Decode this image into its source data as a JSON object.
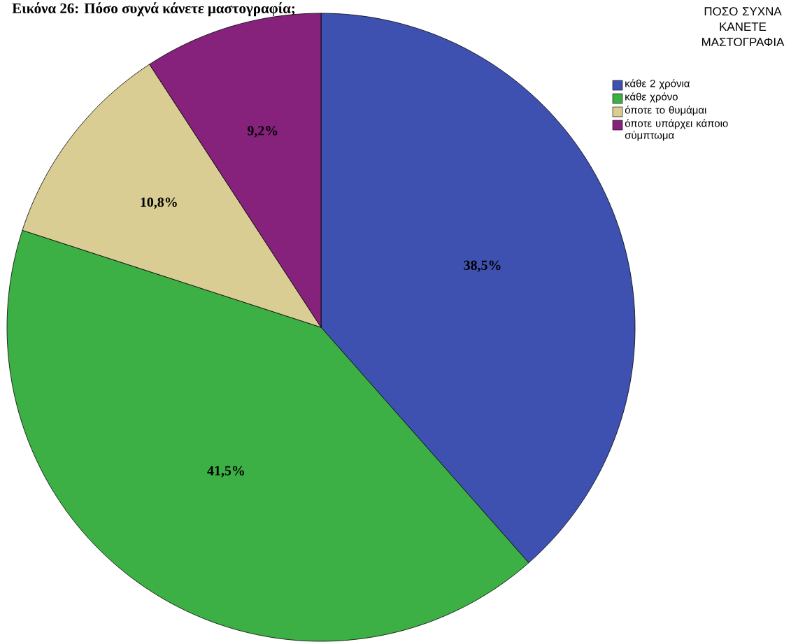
{
  "chart_data": {
    "type": "pie",
    "title": "Εικόνα 26: Πόσο συχνά κάνετε μαστογραφία;",
    "legend_title": "ΠΟΣΟ ΣΥΧΝΑ ΚΑΝΕΤΕ ΜΑΣΤΟΓΡΑΦΙΑ",
    "categories": [
      "κάθε 2 χρόνια",
      "κάθε χρόνο",
      "όποτε το θυμάμαι",
      "όποτε υπάρχει κάποιο σύμπτωμα"
    ],
    "values": [
      38.5,
      41.5,
      10.8,
      9.2
    ],
    "colors": [
      "#3f51b0",
      "#3cb045",
      "#d9cd94",
      "#86227c"
    ],
    "value_labels": [
      "38,5%",
      "41,5%",
      "10,8%",
      "9,2%"
    ],
    "legend": "top right"
  }
}
